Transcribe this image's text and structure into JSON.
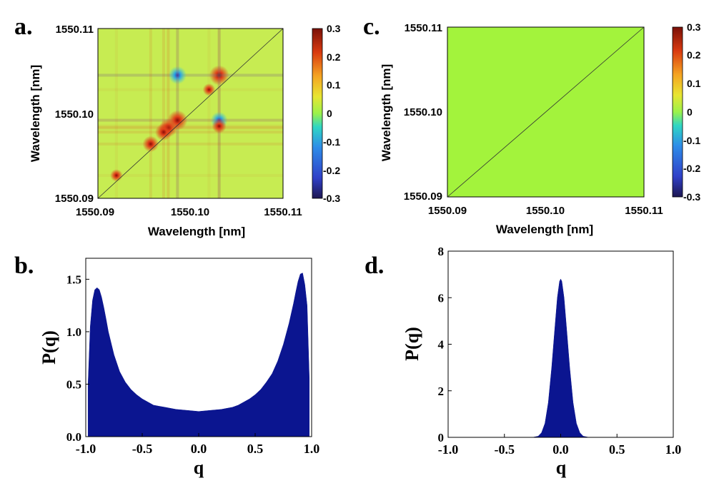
{
  "panel_labels": [
    "a.",
    "b.",
    "c.",
    "d."
  ],
  "colorbar": {
    "ticks": [
      "0.3",
      "0.2",
      "0.1",
      "0",
      "-0.1",
      "-0.2",
      "-0.3"
    ]
  },
  "colors": {
    "background_map_c": "#a3f33c",
    "background_map_a": "#c7ec52",
    "histogram_fill": "#0b1590"
  },
  "chart_data": [
    {
      "id": "a",
      "type": "heatmap",
      "title": "",
      "xlabel": "Wavelength [nm]",
      "ylabel": "Wavelength [nm]",
      "xlim": [
        1550.09,
        1550.11
      ],
      "ylim": [
        1550.09,
        1550.11
      ],
      "x_ticks": [
        "1550.09",
        "1550.10",
        "1550.11"
      ],
      "y_ticks": [
        "1550.09",
        "1550.10",
        "1550.11"
      ],
      "color_range": [
        -0.3,
        0.3
      ],
      "colormap": "jet",
      "diagonal_line": true,
      "features": [
        {
          "x": 1550.1031,
          "y": 1550.1045,
          "value": 0.3
        },
        {
          "x": 1550.0986,
          "y": 1550.1045,
          "value": -0.25
        },
        {
          "x": 1550.1031,
          "y": 1550.0992,
          "value": -0.22
        },
        {
          "x": 1550.0986,
          "y": 1550.0992,
          "value": 0.3
        },
        {
          "x": 1550.0976,
          "y": 1550.0983,
          "value": 0.26
        },
        {
          "x": 1550.0971,
          "y": 1550.0978,
          "value": 0.22
        },
        {
          "x": 1550.1031,
          "y": 1550.0985,
          "value": 0.15
        },
        {
          "x": 1550.0957,
          "y": 1550.0964,
          "value": 0.2
        },
        {
          "x": 1550.102,
          "y": 1550.1028,
          "value": 0.1
        },
        {
          "x": 1550.092,
          "y": 1550.0927,
          "value": 0.1
        }
      ]
    },
    {
      "id": "b",
      "type": "area",
      "title": "",
      "xlabel": "q",
      "ylabel": "P(q)",
      "xlim": [
        -1.0,
        1.0
      ],
      "ylim": [
        0.0,
        1.7
      ],
      "x_ticks": [
        "-1.0",
        "-0.5",
        "0.0",
        "0.5",
        "1.0"
      ],
      "y_ticks": [
        "0.0",
        "0.5",
        "1.0",
        "1.5"
      ],
      "x": [
        -0.98,
        -0.96,
        -0.94,
        -0.92,
        -0.9,
        -0.88,
        -0.86,
        -0.84,
        -0.82,
        -0.8,
        -0.75,
        -0.7,
        -0.65,
        -0.6,
        -0.55,
        -0.5,
        -0.45,
        -0.4,
        -0.35,
        -0.3,
        -0.2,
        -0.1,
        0.0,
        0.1,
        0.2,
        0.3,
        0.35,
        0.4,
        0.45,
        0.5,
        0.55,
        0.6,
        0.65,
        0.7,
        0.75,
        0.8,
        0.84,
        0.86,
        0.88,
        0.9,
        0.92,
        0.94,
        0.96,
        0.98
      ],
      "values": [
        0.5,
        1.05,
        1.3,
        1.4,
        1.42,
        1.4,
        1.33,
        1.23,
        1.12,
        1.0,
        0.78,
        0.62,
        0.52,
        0.45,
        0.4,
        0.36,
        0.33,
        0.3,
        0.29,
        0.28,
        0.26,
        0.25,
        0.24,
        0.25,
        0.26,
        0.28,
        0.3,
        0.33,
        0.36,
        0.4,
        0.45,
        0.52,
        0.6,
        0.72,
        0.88,
        1.08,
        1.27,
        1.38,
        1.48,
        1.55,
        1.56,
        1.45,
        1.25,
        0.55
      ]
    },
    {
      "id": "c",
      "type": "heatmap",
      "title": "",
      "xlabel": "Wavelength [nm]",
      "ylabel": "Wavelength [nm]",
      "xlim": [
        1550.09,
        1550.11
      ],
      "ylim": [
        1550.09,
        1550.11
      ],
      "x_ticks": [
        "1550.09",
        "1550.10",
        "1550.11"
      ],
      "y_ticks": [
        "1550.09",
        "1550.10",
        "1550.11"
      ],
      "color_range": [
        -0.3,
        0.3
      ],
      "colormap": "jet",
      "uniform_value": 0.0,
      "diagonal_line": true
    },
    {
      "id": "d",
      "type": "area",
      "title": "",
      "xlabel": "q",
      "ylabel": "P(q)",
      "xlim": [
        -1.0,
        1.0
      ],
      "ylim": [
        0,
        8
      ],
      "x_ticks": [
        "-1.0",
        "-0.5",
        "0.0",
        "0.5",
        "1.0"
      ],
      "y_ticks": [
        "0",
        "2",
        "4",
        "6",
        "8"
      ],
      "x": [
        -0.25,
        -0.2,
        -0.17,
        -0.14,
        -0.11,
        -0.08,
        -0.05,
        -0.03,
        -0.01,
        0.0,
        0.01,
        0.03,
        0.05,
        0.08,
        0.11,
        0.14,
        0.17,
        0.2,
        0.25
      ],
      "values": [
        0.0,
        0.05,
        0.2,
        0.6,
        1.5,
        3.0,
        4.8,
        6.0,
        6.7,
        6.8,
        6.7,
        6.0,
        4.8,
        3.0,
        1.5,
        0.6,
        0.2,
        0.05,
        0.0
      ]
    }
  ]
}
